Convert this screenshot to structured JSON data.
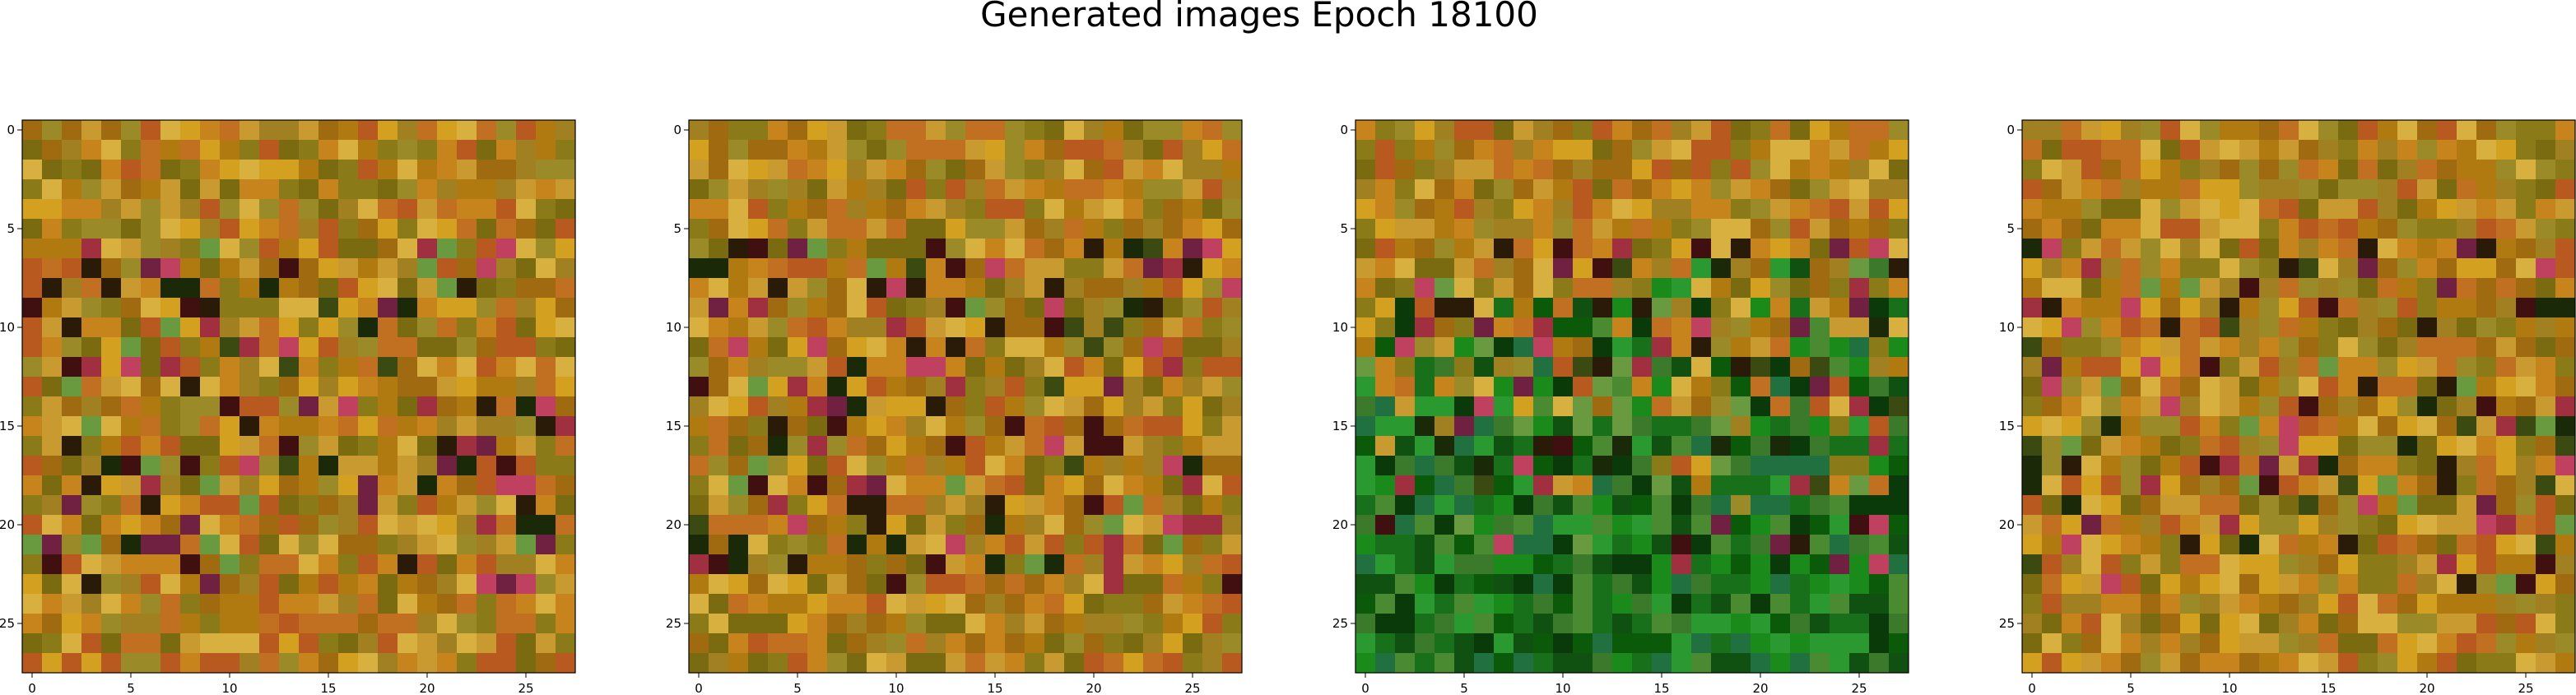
{
  "title": "Generated images Epoch 18100",
  "chart_data": [
    {
      "type": "image",
      "xlim": [
        -0.5,
        27.5
      ],
      "ylim": [
        27.5,
        -0.5
      ],
      "xticks": [
        0,
        5,
        10,
        15,
        20,
        25
      ],
      "yticks": [
        0,
        5,
        10,
        15,
        20,
        25
      ]
    },
    {
      "type": "image",
      "xlim": [
        -0.5,
        27.5
      ],
      "ylim": [
        27.5,
        -0.5
      ],
      "xticks": [
        0,
        5,
        10,
        15,
        20,
        25
      ],
      "yticks": [
        0,
        5,
        10,
        15,
        20,
        25
      ]
    },
    {
      "type": "image",
      "xlim": [
        -0.5,
        27.5
      ],
      "ylim": [
        27.5,
        -0.5
      ],
      "xticks": [
        0,
        5,
        10,
        15,
        20,
        25
      ],
      "yticks": [
        0,
        5,
        10,
        15,
        20,
        25
      ]
    },
    {
      "type": "image",
      "xlim": [
        -0.5,
        27.5
      ],
      "ylim": [
        27.5,
        -0.5
      ],
      "xticks": [
        0,
        5,
        10,
        15,
        20,
        25
      ],
      "yticks": [
        0,
        5,
        10,
        15,
        20,
        25
      ]
    }
  ]
}
